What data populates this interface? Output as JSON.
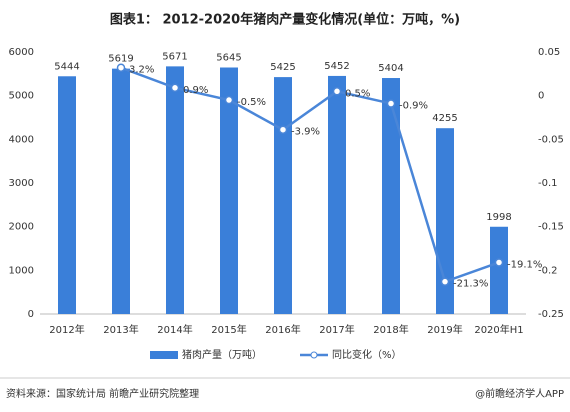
{
  "chart_data": {
    "type": "bar_line",
    "title": "图表1： 2012-2020年猪肉产量变化情况(单位：万吨，%)",
    "categories": [
      "2012年",
      "2013年",
      "2014年",
      "2015年",
      "2016年",
      "2017年",
      "2018年",
      "2019年",
      "2020年H1"
    ],
    "series": [
      {
        "name": "猪肉产量（万吨）",
        "color": "#3a7fd9",
        "type": "bar",
        "values": [
          5444,
          5619,
          5671,
          5645,
          5425,
          5452,
          5404,
          4255,
          1998
        ]
      },
      {
        "name": "同比变化（%）",
        "color": "#4a86d8",
        "type": "line",
        "axis": "y2",
        "values": [
          null,
          0.032,
          0.009,
          -0.005,
          -0.039,
          0.005,
          -0.009,
          -0.213,
          -0.191
        ],
        "value_labels": [
          null,
          "3.2%",
          "0.9%",
          "-0.5%",
          "-3.9%",
          "0.5%",
          "-0.9%",
          "-21.3%",
          "-19.1%"
        ]
      }
    ],
    "ylim": [
      0,
      6000
    ],
    "yticks": [
      0,
      1000,
      2000,
      3000,
      4000,
      5000,
      6000
    ],
    "y2lim": [
      -0.25,
      0.05
    ],
    "y2ticks": [
      0.05,
      0,
      -0.05,
      -0.1,
      -0.15,
      -0.2,
      -0.25
    ],
    "source": "资料来源：国家统计局 前瞻产业研究院整理",
    "credit": "@前瞻经济学人APP"
  }
}
